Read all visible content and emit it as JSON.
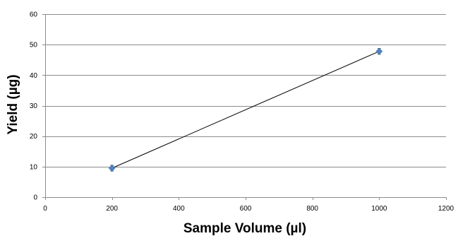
{
  "chart_data": {
    "type": "line",
    "title": "",
    "xlabel": "Sample Volume (µl)",
    "ylabel": "Yield (µg)",
    "xlim": [
      0,
      1200
    ],
    "ylim": [
      0,
      60
    ],
    "xticks": [
      0,
      200,
      400,
      600,
      800,
      1000,
      1200
    ],
    "yticks": [
      0,
      10,
      20,
      30,
      40,
      50,
      60
    ],
    "grid": "horizontal",
    "legend": "none",
    "series": [
      {
        "x": [
          200,
          1000
        ],
        "y": [
          9.5,
          47.8
        ],
        "line_color": "#000000",
        "marker_color": "#4f81bd",
        "error_bar_color": "#000000"
      }
    ]
  }
}
